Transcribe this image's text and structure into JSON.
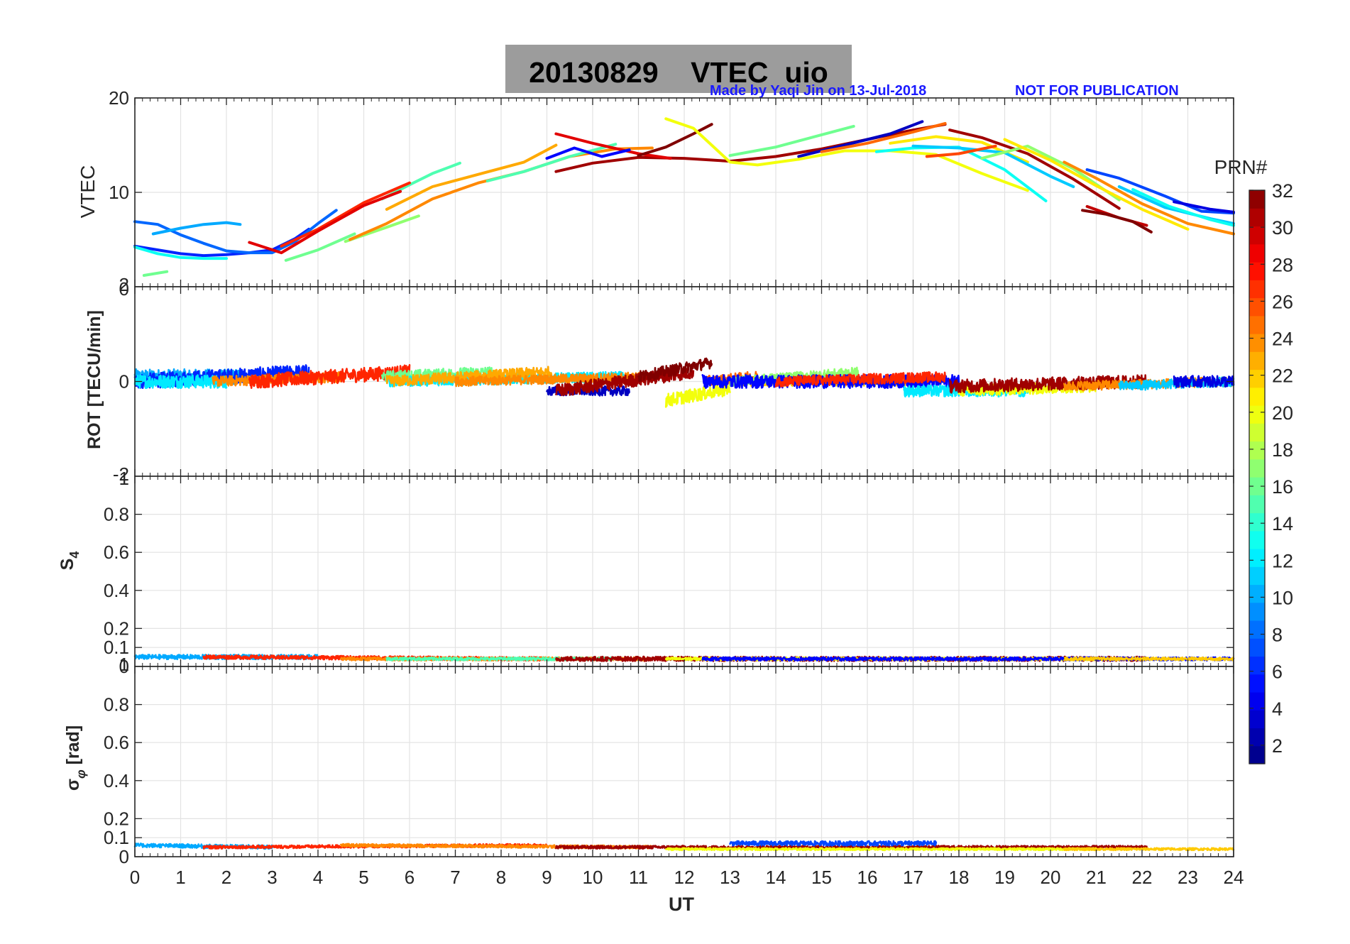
{
  "figure": {
    "title": "20130829    VTEC  uio",
    "note_author": "Made by Yaqi Jin on 13-Jul-2018",
    "note_pub": "NOT FOR PUBLICATION",
    "colorbar_title": "PRN#",
    "colorbar_ticks": [
      "2",
      "4",
      "6",
      "8",
      "10",
      "12",
      "14",
      "16",
      "18",
      "20",
      "22",
      "24",
      "26",
      "28",
      "30",
      "32"
    ],
    "colorbar_range": [
      1,
      32
    ],
    "xlabel": "UT",
    "x_ticks": [
      "0",
      "1",
      "2",
      "3",
      "4",
      "5",
      "6",
      "7",
      "8",
      "9",
      "10",
      "11",
      "12",
      "13",
      "14",
      "15",
      "16",
      "17",
      "18",
      "19",
      "20",
      "21",
      "22",
      "23",
      "24"
    ]
  },
  "chart_data": [
    {
      "type": "line",
      "panel": "VTEC",
      "ylabel": "VTEC",
      "xlim": [
        0,
        24
      ],
      "ylim": [
        0,
        20
      ],
      "y_ticks": [
        "20",
        "10"
      ],
      "y_tick_values": [
        20,
        10
      ],
      "bottom_overlap_ticks": [
        "2",
        "0"
      ],
      "series": [
        {
          "prn": 6,
          "x": [
            0,
            0.5,
            1,
            1.5,
            2,
            2.5,
            3,
            3.5,
            3.8
          ],
          "y": [
            4.3,
            3.9,
            3.5,
            3.3,
            3.4,
            3.6,
            3.9,
            5.1,
            6.1
          ]
        },
        {
          "prn": 8,
          "x": [
            0,
            0.5,
            1,
            1.5,
            2,
            2.5,
            3,
            3.5,
            4,
            4.4
          ],
          "y": [
            6.9,
            6.6,
            5.5,
            4.6,
            3.8,
            3.6,
            3.6,
            4.8,
            6.7,
            8.1
          ]
        },
        {
          "prn": 10,
          "x": [
            0.4,
            1,
            1.5,
            2,
            2.3
          ],
          "y": [
            5.6,
            6.2,
            6.6,
            6.8,
            6.6
          ]
        },
        {
          "prn": 13,
          "x": [
            0,
            0.5,
            1,
            1.5,
            2
          ],
          "y": [
            4.2,
            3.5,
            3.1,
            3.0,
            3.0
          ]
        },
        {
          "prn": 16,
          "x": [
            0.2,
            0.7
          ],
          "y": [
            1.2,
            1.6
          ]
        },
        {
          "prn": 16,
          "x": [
            3.3,
            4,
            4.8
          ],
          "y": [
            2.8,
            3.9,
            5.6
          ]
        },
        {
          "prn": 17,
          "x": [
            4.6,
            5.5,
            6.2
          ],
          "y": [
            4.8,
            6.3,
            7.5
          ]
        },
        {
          "prn": 15,
          "x": [
            5.4,
            6,
            6.5,
            7.1
          ],
          "y": [
            9.3,
            10.8,
            12.0,
            13.1
          ]
        },
        {
          "prn": 24,
          "x": [
            4.7,
            5.5,
            6.5,
            7.5,
            8.5,
            9.5,
            10.5,
            11.3
          ],
          "y": [
            5.0,
            6.7,
            9.3,
            11.0,
            12.2,
            13.8,
            14.6,
            14.7
          ]
        },
        {
          "prn": 27,
          "x": [
            3.2,
            4,
            5,
            6
          ],
          "y": [
            4.3,
            6.1,
            8.9,
            11.0
          ]
        },
        {
          "prn": 29,
          "x": [
            2.5,
            3.2,
            4,
            5,
            5.8
          ],
          "y": [
            4.7,
            3.6,
            5.9,
            8.6,
            10.1
          ]
        },
        {
          "prn": 23,
          "x": [
            5.5,
            6.5,
            7.5,
            8.5,
            9.2
          ],
          "y": [
            8.2,
            10.6,
            11.9,
            13.2,
            15.0
          ]
        },
        {
          "prn": 15,
          "x": [
            7.7,
            8.5,
            9.5,
            10.5
          ],
          "y": [
            11.2,
            12.2,
            13.8,
            15.1
          ]
        },
        {
          "prn": 31,
          "x": [
            9.2,
            10,
            11,
            12,
            13,
            14,
            15,
            16,
            17,
            17.7
          ],
          "y": [
            12.2,
            13.1,
            13.7,
            13.6,
            13.3,
            13.8,
            14.6,
            15.6,
            16.6,
            17.2
          ]
        },
        {
          "prn": 29,
          "x": [
            9.2,
            10,
            11,
            11.7
          ],
          "y": [
            16.2,
            15.2,
            14.1,
            13.6
          ]
        },
        {
          "prn": 32,
          "x": [
            11,
            11.6,
            12.2,
            12.6
          ],
          "y": [
            13.9,
            14.8,
            16.2,
            17.2
          ]
        },
        {
          "prn": 20,
          "x": [
            11.6,
            12.2,
            12.6,
            13,
            13.6,
            14.5
          ],
          "y": [
            17.8,
            16.8,
            15.0,
            13.2,
            12.9,
            13.5
          ]
        },
        {
          "prn": 5,
          "x": [
            9.0,
            9.6,
            10.2,
            10.8
          ],
          "y": [
            13.6,
            14.7,
            13.8,
            14.5
          ]
        },
        {
          "prn": 16,
          "x": [
            13,
            14,
            15,
            15.7
          ],
          "y": [
            13.9,
            14.8,
            16.1,
            17.0
          ]
        },
        {
          "prn": 3,
          "x": [
            14.5,
            15.5,
            16.5,
            17.2
          ],
          "y": [
            13.8,
            15.0,
            16.2,
            17.5
          ]
        },
        {
          "prn": 25,
          "x": [
            15,
            16,
            17,
            17.7
          ],
          "y": [
            14.3,
            15.2,
            16.4,
            17.3
          ]
        },
        {
          "prn": 20,
          "x": [
            14.5,
            15.5,
            16.5,
            17.5,
            18.5,
            19.5
          ],
          "y": [
            13.5,
            14.4,
            14.4,
            14.0,
            12.0,
            10.2
          ]
        },
        {
          "prn": 21,
          "x": [
            16.5,
            17.5,
            18.5,
            19.5
          ],
          "y": [
            15.2,
            15.9,
            15.3,
            13.2
          ]
        },
        {
          "prn": 13,
          "x": [
            16.2,
            17,
            18,
            19,
            19.9
          ],
          "y": [
            14.3,
            14.7,
            14.8,
            12.4,
            9.1
          ]
        },
        {
          "prn": 11,
          "x": [
            17,
            18,
            19,
            20,
            20.5
          ],
          "y": [
            14.9,
            14.7,
            14.2,
            11.7,
            10.6
          ]
        },
        {
          "prn": 31,
          "x": [
            17.8,
            18.5,
            19.5,
            20.5,
            21.5
          ],
          "y": [
            16.6,
            15.8,
            14.1,
            11.4,
            8.3
          ]
        },
        {
          "prn": 17,
          "x": [
            18.5,
            19.5,
            20.5,
            21.5
          ],
          "y": [
            13.6,
            14.9,
            12.5,
            9.2
          ]
        },
        {
          "prn": 26,
          "x": [
            17.3,
            18,
            18.8
          ],
          "y": [
            13.8,
            14.1,
            14.9
          ]
        },
        {
          "prn": 21,
          "x": [
            19,
            20,
            21,
            22,
            23
          ],
          "y": [
            15.6,
            13.4,
            10.7,
            8.2,
            6.1
          ]
        },
        {
          "prn": 30,
          "x": [
            20.8,
            21.5,
            22.1
          ],
          "y": [
            8.5,
            7.3,
            6.5
          ]
        },
        {
          "prn": 32,
          "x": [
            20.7,
            21.2,
            21.8,
            22.2
          ],
          "y": [
            8.1,
            7.7,
            6.9,
            5.8
          ]
        },
        {
          "prn": 24,
          "x": [
            20.3,
            21,
            22,
            23,
            24
          ],
          "y": [
            13.2,
            11.5,
            8.8,
            6.7,
            5.6
          ]
        },
        {
          "prn": 7,
          "x": [
            20.8,
            21.5,
            22.5,
            23.3,
            24
          ],
          "y": [
            12.4,
            11.5,
            9.6,
            8.0,
            7.8
          ]
        },
        {
          "prn": 11,
          "x": [
            21.5,
            22.5,
            23.5,
            24
          ],
          "y": [
            10.6,
            8.4,
            7.2,
            6.7
          ]
        },
        {
          "prn": 13,
          "x": [
            21.8,
            22.6,
            23.5,
            24
          ],
          "y": [
            10.3,
            8.5,
            7.1,
            6.5
          ]
        },
        {
          "prn": 4,
          "x": [
            22.7,
            23.5,
            24
          ],
          "y": [
            9.0,
            8.2,
            7.9
          ]
        }
      ]
    },
    {
      "type": "line",
      "panel": "ROT",
      "ylabel": "ROT [TECU/min]",
      "xlim": [
        0,
        24
      ],
      "ylim": [
        -2,
        2
      ],
      "y_ticks": [
        "0"
      ],
      "y_tick_values": [
        0
      ],
      "bottom_overlap_ticks": [
        "-2",
        "1"
      ],
      "series": [
        {
          "prn": 10,
          "x": [
            0,
            2.3
          ],
          "y": [
            0.1,
            0.1
          ],
          "noise": 0.16
        },
        {
          "prn": 6,
          "x": [
            0,
            3.8
          ],
          "y": [
            0.0,
            0.2
          ],
          "noise": 0.16
        },
        {
          "prn": 12,
          "x": [
            0,
            2.0
          ],
          "y": [
            0.0,
            0.0
          ],
          "noise": 0.14
        },
        {
          "prn": 24,
          "x": [
            1.7,
            4.6
          ],
          "y": [
            0.0,
            0.1
          ],
          "noise": 0.11
        },
        {
          "prn": 27,
          "x": [
            2.5,
            6.0
          ],
          "y": [
            0.0,
            0.2
          ],
          "noise": 0.15
        },
        {
          "prn": 16,
          "x": [
            5.4,
            7.8
          ],
          "y": [
            0.1,
            0.2
          ],
          "noise": 0.12
        },
        {
          "prn": 12,
          "x": [
            5.5,
            10.7
          ],
          "y": [
            0.0,
            0.1
          ],
          "noise": 0.11
        },
        {
          "prn": 23,
          "x": [
            5.5,
            9.1
          ],
          "y": [
            0.0,
            0.2
          ],
          "noise": 0.12
        },
        {
          "prn": 24,
          "x": [
            7.0,
            11.3
          ],
          "y": [
            0.0,
            0.1
          ],
          "noise": 0.1
        },
        {
          "prn": 3,
          "x": [
            9.0,
            10.8
          ],
          "y": [
            -0.2,
            -0.2
          ],
          "noise": 0.1
        },
        {
          "prn": 31,
          "x": [
            9.2,
            12.2
          ],
          "y": [
            -0.2,
            0.2
          ],
          "noise": 0.14
        },
        {
          "prn": 32,
          "x": [
            11.0,
            12.6
          ],
          "y": [
            0.1,
            0.4
          ],
          "noise": 0.12
        },
        {
          "prn": 20,
          "x": [
            11.6,
            13.0
          ],
          "y": [
            -0.4,
            -0.15
          ],
          "noise": 0.14
        },
        {
          "prn": 25,
          "x": [
            12.5,
            13.6
          ],
          "y": [
            0.0,
            0.1
          ],
          "noise": 0.12
        },
        {
          "prn": 22,
          "x": [
            13.0,
            17.0
          ],
          "y": [
            0.0,
            0.0
          ],
          "noise": 0.1
        },
        {
          "prn": 17,
          "x": [
            13.0,
            15.8
          ],
          "y": [
            0.0,
            0.2
          ],
          "noise": 0.1
        },
        {
          "prn": 5,
          "x": [
            12.4,
            18.0
          ],
          "y": [
            0.0,
            0.0
          ],
          "noise": 0.14
        },
        {
          "prn": 27,
          "x": [
            14.0,
            17.7
          ],
          "y": [
            0.0,
            0.1
          ],
          "noise": 0.11
        },
        {
          "prn": 12,
          "x": [
            16.8,
            19.5
          ],
          "y": [
            -0.2,
            -0.2
          ],
          "noise": 0.12
        },
        {
          "prn": 20,
          "x": [
            18.0,
            21.0
          ],
          "y": [
            -0.2,
            -0.1
          ],
          "noise": 0.12
        },
        {
          "prn": 31,
          "x": [
            17.8,
            22.1
          ],
          "y": [
            -0.1,
            0.0
          ],
          "noise": 0.14
        },
        {
          "prn": 24,
          "x": [
            20.3,
            24.0
          ],
          "y": [
            -0.1,
            0.0
          ],
          "noise": 0.1
        },
        {
          "prn": 11,
          "x": [
            21.5,
            24.0
          ],
          "y": [
            -0.1,
            0.0
          ],
          "noise": 0.1
        },
        {
          "prn": 4,
          "x": [
            22.7,
            24.0
          ],
          "y": [
            0.0,
            0.0
          ],
          "noise": 0.12
        }
      ]
    },
    {
      "type": "line",
      "panel": "S4",
      "ylabel": "S4",
      "xlim": [
        0,
        24
      ],
      "ylim": [
        0,
        1
      ],
      "y_ticks": [
        "0.8",
        "0.6",
        "0.4",
        "0.2",
        "0.1",
        "0"
      ],
      "y_tick_values": [
        0.8,
        0.6,
        0.4,
        0.2,
        0.1,
        0
      ],
      "bottom_overlap_ticks": [
        "1"
      ],
      "series": [
        {
          "prn": 10,
          "x": [
            0,
            4.0
          ],
          "y": [
            0.05,
            0.05
          ],
          "noise": 0.012
        },
        {
          "prn": 27,
          "x": [
            1.5,
            9.0
          ],
          "y": [
            0.05,
            0.04
          ],
          "noise": 0.01
        },
        {
          "prn": 24,
          "x": [
            4.5,
            11.3
          ],
          "y": [
            0.04,
            0.04
          ],
          "noise": 0.009
        },
        {
          "prn": 15,
          "x": [
            5.5,
            10.5
          ],
          "y": [
            0.04,
            0.04
          ],
          "noise": 0.008
        },
        {
          "prn": 31,
          "x": [
            9.2,
            22.1
          ],
          "y": [
            0.04,
            0.04
          ],
          "noise": 0.012
        },
        {
          "prn": 20,
          "x": [
            11.6,
            21.0
          ],
          "y": [
            0.04,
            0.04
          ],
          "noise": 0.008
        },
        {
          "prn": 5,
          "x": [
            12.4,
            24.0
          ],
          "y": [
            0.04,
            0.04
          ],
          "noise": 0.009
        },
        {
          "prn": 22,
          "x": [
            20.3,
            24.0
          ],
          "y": [
            0.04,
            0.04
          ],
          "noise": 0.008
        }
      ]
    },
    {
      "type": "line",
      "panel": "sigma_phi",
      "ylabel": "σφ [rad]",
      "xlim": [
        0,
        24
      ],
      "ylim": [
        0,
        1
      ],
      "y_ticks": [
        "0.8",
        "0.6",
        "0.4",
        "0.2",
        "0.1",
        "0"
      ],
      "y_tick_values": [
        0.8,
        0.6,
        0.4,
        0.2,
        0.1,
        0
      ],
      "bottom_overlap_ticks": [],
      "series": [
        {
          "prn": 10,
          "x": [
            0,
            3.0
          ],
          "y": [
            0.06,
            0.05
          ],
          "noise": 0.01
        },
        {
          "prn": 27,
          "x": [
            1.5,
            9.0
          ],
          "y": [
            0.05,
            0.06
          ],
          "noise": 0.008
        },
        {
          "prn": 24,
          "x": [
            4.5,
            11.3
          ],
          "y": [
            0.06,
            0.05
          ],
          "noise": 0.008
        },
        {
          "prn": 31,
          "x": [
            9.2,
            22.1
          ],
          "y": [
            0.05,
            0.05
          ],
          "noise": 0.008
        },
        {
          "prn": 7,
          "x": [
            13.0,
            17.5
          ],
          "y": [
            0.07,
            0.07
          ],
          "noise": 0.012
        },
        {
          "prn": 20,
          "x": [
            11.6,
            21.0
          ],
          "y": [
            0.04,
            0.04
          ],
          "noise": 0.006
        },
        {
          "prn": 22,
          "x": [
            20.3,
            24.0
          ],
          "y": [
            0.04,
            0.04
          ],
          "noise": 0.006
        }
      ]
    }
  ]
}
